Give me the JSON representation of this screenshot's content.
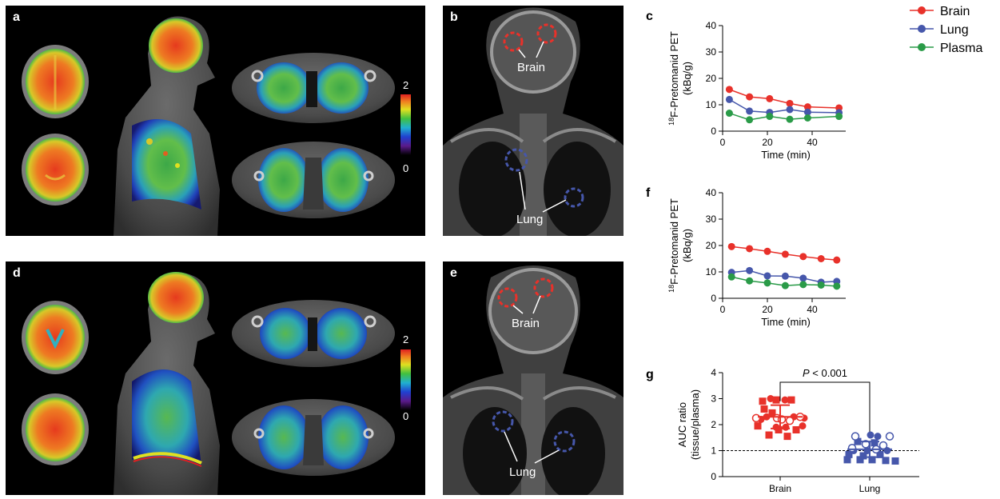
{
  "panels": {
    "a": "a",
    "b": "b",
    "c": "c",
    "d": "d",
    "e": "e",
    "f": "f",
    "g": "g"
  },
  "image_labels": {
    "brain": "Brain",
    "lung": "Lung",
    "scale_max": "2",
    "scale_min": "0"
  },
  "legend": {
    "brain": "Brain",
    "lung": "Lung",
    "plasma": "Plasma"
  },
  "colors": {
    "brain": "#e8312a",
    "lung": "#4657ab",
    "plasma": "#2a9b48"
  },
  "chart_data": [
    {
      "id": "c",
      "type": "line",
      "xlabel": "Time (min)",
      "ylabel_sup": "18",
      "ylabel_main": "F-Pretomanid PET",
      "ylabel_unit": "(kBq/g)",
      "xlim": [
        0,
        55
      ],
      "ylim": [
        0,
        40
      ],
      "xticks": [
        0,
        20,
        40
      ],
      "yticks": [
        0,
        10,
        20,
        30,
        40
      ],
      "series": [
        {
          "name": "Brain",
          "x": [
            3,
            12,
            21,
            30,
            38,
            52
          ],
          "values": [
            15.8,
            13,
            12.3,
            10.5,
            9.2,
            8.8
          ]
        },
        {
          "name": "Lung",
          "x": [
            3,
            12,
            21,
            30,
            38,
            52
          ],
          "values": [
            12,
            7.6,
            7.1,
            8.2,
            7.2,
            7
          ]
        },
        {
          "name": "Plasma",
          "x": [
            3,
            12,
            21,
            30,
            38,
            52
          ],
          "values": [
            6.8,
            4.3,
            5.6,
            4.5,
            5,
            5.6
          ]
        }
      ]
    },
    {
      "id": "f",
      "type": "line",
      "xlabel": "Time (min)",
      "ylabel_sup": "18",
      "ylabel_main": "F-Pretomanid PET",
      "ylabel_unit": "(kBq/g)",
      "xlim": [
        0,
        55
      ],
      "ylim": [
        0,
        40
      ],
      "xticks": [
        0,
        20,
        40
      ],
      "yticks": [
        0,
        10,
        20,
        30,
        40
      ],
      "series": [
        {
          "name": "Brain",
          "x": [
            4,
            12,
            20,
            28,
            36,
            44,
            51
          ],
          "values": [
            19.6,
            18.8,
            17.8,
            16.7,
            15.8,
            15,
            14.5
          ]
        },
        {
          "name": "Lung",
          "x": [
            4,
            12,
            20,
            28,
            36,
            44,
            51
          ],
          "values": [
            9.8,
            10.5,
            8.5,
            8.4,
            7.6,
            6.1,
            6.4
          ]
        },
        {
          "name": "Plasma",
          "x": [
            4,
            12,
            20,
            28,
            36,
            44,
            51
          ],
          "values": [
            8.1,
            6.6,
            5.8,
            4.8,
            5.2,
            5,
            4.6
          ]
        }
      ]
    },
    {
      "id": "g",
      "type": "scatter",
      "categories": [
        "Brain",
        "Lung"
      ],
      "ylabel_main": "AUC ratio",
      "ylabel_unit": "(tissue/plasma)",
      "ylim": [
        0,
        4
      ],
      "yticks": [
        0,
        1,
        2,
        3,
        4
      ],
      "reference_line": 1,
      "annotation_italic": "P",
      "annotation_rest": " < 0.001",
      "groups": [
        {
          "name": "Brain",
          "mean": 2.3,
          "sd_low": 1.85,
          "sd_high": 2.75,
          "filled_squares": [
            [
              -22,
              2.9
            ],
            [
              -5,
              2.95
            ],
            [
              14,
              2.95
            ],
            [
              -20,
              2.6
            ],
            [
              -10,
              2.45
            ],
            [
              -2,
              1.8
            ],
            [
              20,
              1.8
            ],
            [
              -14,
              1.6
            ],
            [
              9,
              1.55
            ],
            [
              -28,
              1.95
            ]
          ],
          "filled_circles": [
            [
              -12,
              3.0
            ],
            [
              6,
              2.95
            ],
            [
              -17,
              2.3
            ],
            [
              17,
              2.3
            ],
            [
              30,
              2.25
            ],
            [
              -5,
              1.9
            ],
            [
              7,
              1.9
            ],
            [
              28,
              1.95
            ],
            [
              -24,
              2.2
            ]
          ],
          "open_circles": [
            [
              -30,
              2.25
            ],
            [
              -4,
              2.25
            ],
            [
              2,
              2.2
            ],
            [
              25,
              2.3
            ],
            [
              12,
              2.15
            ]
          ]
        },
        {
          "name": "Lung",
          "mean": 1.05,
          "sd_low": 0.75,
          "sd_high": 1.35,
          "filled_squares": [
            [
              -15,
              1.35
            ],
            [
              6,
              1.3
            ],
            [
              -26,
              0.85
            ],
            [
              -8,
              0.8
            ],
            [
              13,
              0.85
            ],
            [
              -28,
              0.65
            ],
            [
              -12,
              0.65
            ],
            [
              3,
              0.65
            ],
            [
              20,
              0.62
            ],
            [
              32,
              0.6
            ]
          ],
          "filled_circles": [
            [
              1,
              1.6
            ],
            [
              10,
              1.55
            ],
            [
              -3,
              1.0
            ],
            [
              22,
              1.0
            ],
            [
              -20,
              1.0
            ]
          ],
          "open_circles": [
            [
              -18,
              1.55
            ],
            [
              -5,
              1.25
            ],
            [
              17,
              1.2
            ],
            [
              25,
              1.55
            ],
            [
              -22,
              1.1
            ],
            [
              8,
              1.05
            ]
          ]
        }
      ]
    }
  ]
}
